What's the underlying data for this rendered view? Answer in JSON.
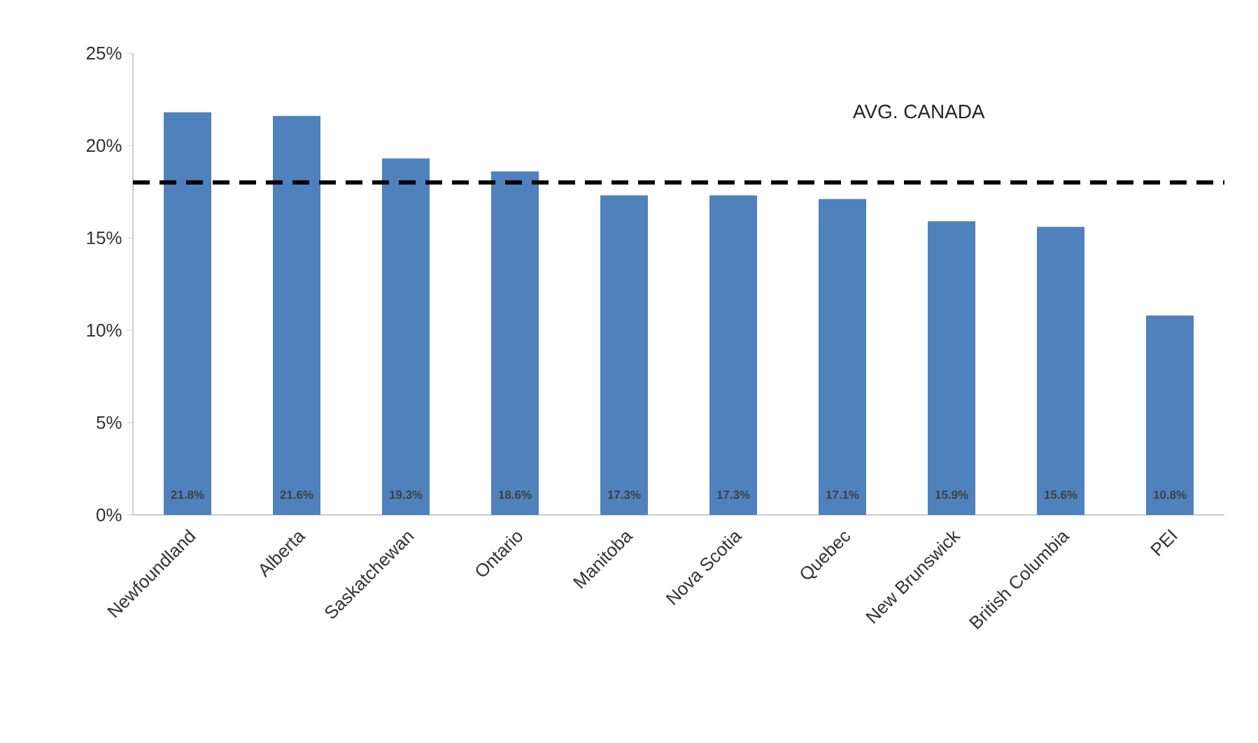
{
  "chart_data": {
    "type": "bar",
    "categories": [
      "Newfoundland",
      "Alberta",
      "Saskatchewan",
      "Ontario",
      "Manitoba",
      "Nova Scotia",
      "Quebec",
      "New Brunswick",
      "British Columbia",
      "PEI"
    ],
    "values": [
      21.8,
      21.6,
      19.3,
      18.6,
      17.3,
      17.3,
      17.1,
      15.9,
      15.6,
      10.8
    ],
    "value_labels": [
      "21.8%",
      "21.6%",
      "19.3%",
      "18.6%",
      "17.3%",
      "17.3%",
      "17.1%",
      "15.9%",
      "15.6%",
      "10.8%"
    ],
    "color": "#4f81bd",
    "ylim": [
      0,
      25
    ],
    "yticks": [
      {
        "value": 0,
        "label": "0%"
      },
      {
        "value": 5,
        "label": "5%"
      },
      {
        "value": 10,
        "label": "10%"
      },
      {
        "value": 15,
        "label": "15%"
      },
      {
        "value": 20,
        "label": "20%"
      },
      {
        "value": 25,
        "label": "25%"
      }
    ],
    "ref_lines": [
      {
        "axis": "y",
        "value": 18.0,
        "label": "AVG. CANADA",
        "color": "#000000",
        "line_style": "dashed"
      }
    ],
    "grid": false
  }
}
